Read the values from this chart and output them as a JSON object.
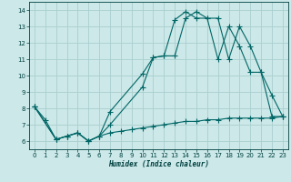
{
  "xlabel": "Humidex (Indice chaleur)",
  "bg_color": "#cce8e8",
  "grid_color": "#aacece",
  "line_color": "#006666",
  "xlim": [
    -0.5,
    23.5
  ],
  "ylim": [
    5.5,
    14.5
  ],
  "xticks": [
    0,
    1,
    2,
    3,
    4,
    5,
    6,
    7,
    8,
    9,
    10,
    11,
    12,
    13,
    14,
    15,
    16,
    17,
    18,
    19,
    20,
    21,
    22,
    23
  ],
  "yticks": [
    6,
    7,
    8,
    9,
    10,
    11,
    12,
    13,
    14
  ],
  "line1_x": [
    0,
    1,
    2,
    3,
    4,
    5,
    6,
    7,
    10,
    11,
    12,
    13,
    14,
    15,
    16,
    17,
    18,
    19,
    20,
    21,
    22,
    23
  ],
  "line1_y": [
    8.1,
    7.3,
    6.1,
    6.3,
    6.5,
    6.0,
    6.3,
    7.0,
    9.3,
    11.1,
    11.2,
    11.2,
    13.5,
    13.9,
    13.5,
    13.5,
    11.0,
    13.0,
    11.8,
    10.2,
    8.8,
    7.5
  ],
  "line2_x": [
    0,
    2,
    3,
    4,
    5,
    6,
    7,
    10,
    11,
    12,
    13,
    14,
    15,
    16,
    17,
    18,
    19,
    20,
    21,
    22,
    23
  ],
  "line2_y": [
    8.1,
    6.1,
    6.3,
    6.5,
    6.0,
    6.3,
    7.8,
    10.1,
    11.1,
    11.2,
    13.4,
    13.9,
    13.5,
    13.5,
    11.0,
    13.0,
    11.8,
    10.2,
    10.2,
    7.5,
    7.5
  ],
  "line3_x": [
    0,
    2,
    3,
    4,
    5,
    6,
    7,
    8,
    9,
    10,
    11,
    12,
    13,
    14,
    15,
    16,
    17,
    18,
    19,
    20,
    21,
    22,
    23
  ],
  "line3_y": [
    8.1,
    6.1,
    6.3,
    6.5,
    6.0,
    6.3,
    6.5,
    6.6,
    6.7,
    6.8,
    6.9,
    7.0,
    7.1,
    7.2,
    7.2,
    7.3,
    7.3,
    7.4,
    7.4,
    7.4,
    7.4,
    7.4,
    7.5
  ]
}
